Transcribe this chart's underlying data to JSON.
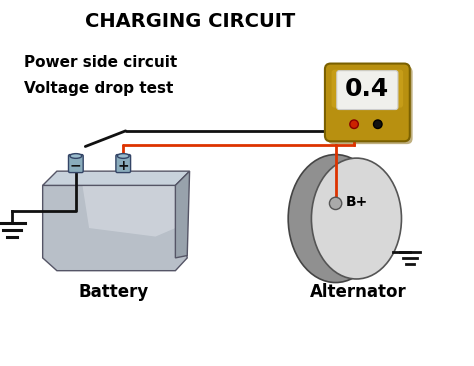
{
  "title": "CHARGING CIRCUIT",
  "subtitle_line1": "Power side circuit",
  "subtitle_line2": "Voltage drop test",
  "meter_value": "0.4",
  "battery_label": "Battery",
  "alternator_label": "Alternator",
  "bp_label": "B+",
  "bg_color": "#ffffff",
  "wire_color_red": "#dd3300",
  "wire_color_black": "#111111",
  "battery_body_color": "#b8bfc8",
  "battery_highlight_color": "#d8dde4",
  "battery_shadow_color": "#888f98",
  "battery_terminal_color": "#6688aa",
  "meter_body_color": "#b89010",
  "meter_body_highlight": "#d4aa20",
  "meter_screen_color": "#f0f0ec",
  "alternator_body_color": "#d8d8d8",
  "alternator_back_color": "#909090",
  "ground_color": "#111111",
  "title_fontsize": 14,
  "label_fontsize": 12,
  "subtitle_fontsize": 11,
  "meter_num_fontsize": 18
}
